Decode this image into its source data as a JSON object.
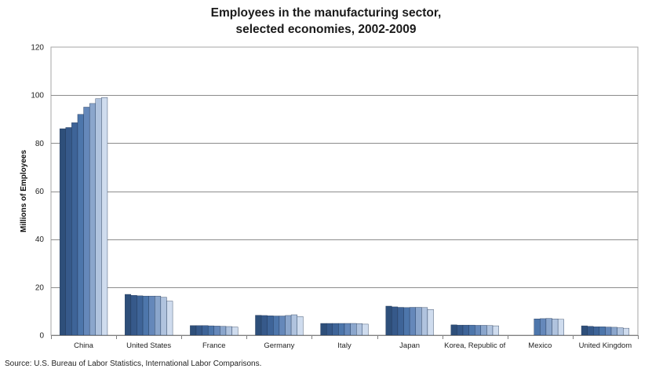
{
  "chart_data": {
    "type": "bar",
    "title_line1": "Employees in the manufacturing sector,",
    "title_line2": "selected economies, 2002-2009",
    "xlabel": "",
    "ylabel": "Millions of Employees",
    "ylim": [
      0,
      120
    ],
    "yticks": [
      "0",
      "20",
      "40",
      "60",
      "80",
      "100",
      "120"
    ],
    "grid": true,
    "legend": "none",
    "categories": [
      "China",
      "United States",
      "France",
      "Germany",
      "Italy",
      "Japan",
      "Korea, Republic of",
      "Mexico",
      "United Kingdom"
    ],
    "series": [
      {
        "color": "#2e4f7a",
        "values": [
          86,
          17,
          4,
          8.3,
          4.9,
          12.1,
          4.3,
          null,
          3.9
        ]
      },
      {
        "color": "#36598a",
        "values": [
          86.5,
          16.6,
          4,
          8.2,
          4.9,
          11.8,
          4.2,
          null,
          3.7
        ]
      },
      {
        "color": "#3e6498",
        "values": [
          88.5,
          16.4,
          4,
          8.1,
          4.9,
          11.6,
          4.2,
          null,
          3.5
        ]
      },
      {
        "color": "#4d76ab",
        "values": [
          92,
          16.3,
          3.9,
          8.0,
          4.9,
          11.5,
          4.2,
          6.8,
          3.5
        ]
      },
      {
        "color": "#6588ba",
        "values": [
          95,
          16.3,
          3.8,
          8.0,
          4.9,
          11.6,
          4.1,
          6.9,
          3.4
        ]
      },
      {
        "color": "#8ba6cc",
        "values": [
          96.5,
          16.3,
          3.7,
          8.2,
          4.9,
          11.6,
          4.1,
          7.0,
          3.3
        ]
      },
      {
        "color": "#b0c3de",
        "values": [
          98.5,
          15.8,
          3.6,
          8.5,
          4.8,
          11.5,
          4.0,
          6.8,
          3.1
        ]
      },
      {
        "color": "#cfdcee",
        "values": [
          99,
          14.2,
          3.4,
          7.8,
          4.6,
          10.7,
          3.9,
          6.6,
          2.9
        ]
      }
    ]
  },
  "source": "Source: U.S. Bureau of Labor Statistics, International Labor Comparisons."
}
